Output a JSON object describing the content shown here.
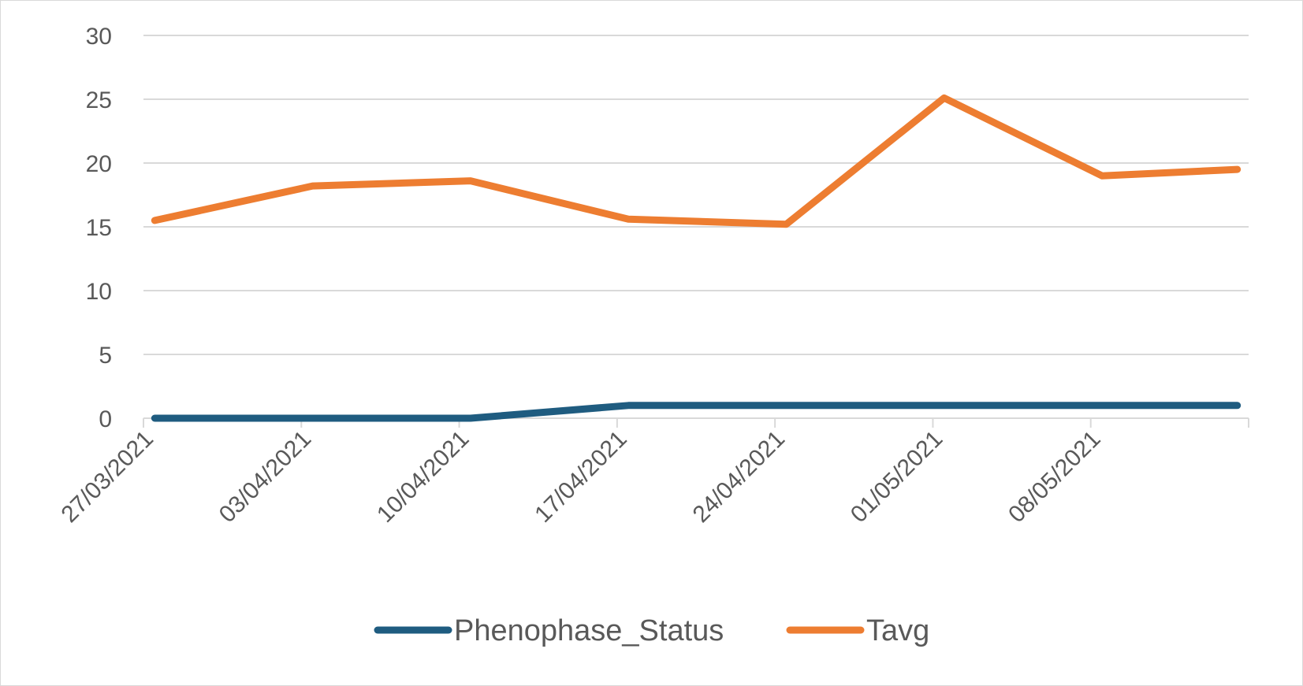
{
  "chart_data": {
    "type": "line",
    "title": "",
    "xlabel": "",
    "ylabel": "",
    "x_axis_type": "date",
    "x_range": [
      "27/03/2021",
      "14/05/2021"
    ],
    "ylim": [
      0,
      30
    ],
    "yticks": [
      0,
      5,
      10,
      15,
      20,
      25,
      30
    ],
    "xticks": [
      "27/03/2021",
      "03/04/2021",
      "10/04/2021",
      "17/04/2021",
      "24/04/2021",
      "01/05/2021",
      "08/05/2021"
    ],
    "grid": "horizontal",
    "legend_position": "bottom",
    "series": [
      {
        "name": "Phenophase_Status",
        "color": "#1f5c80",
        "x": [
          "27/03/2021",
          "03/04/2021",
          "10/04/2021",
          "17/04/2021",
          "24/04/2021",
          "01/05/2021",
          "08/05/2021",
          "14/05/2021"
        ],
        "values": [
          0,
          0,
          0,
          1,
          1,
          1,
          1,
          1
        ]
      },
      {
        "name": "Tavg",
        "color": "#ed7d31",
        "x": [
          "27/03/2021",
          "03/04/2021",
          "10/04/2021",
          "17/04/2021",
          "24/04/2021",
          "01/05/2021",
          "08/05/2021",
          "14/05/2021"
        ],
        "values": [
          15.5,
          18.2,
          18.6,
          15.6,
          15.2,
          25.1,
          19,
          19.5
        ]
      }
    ]
  }
}
